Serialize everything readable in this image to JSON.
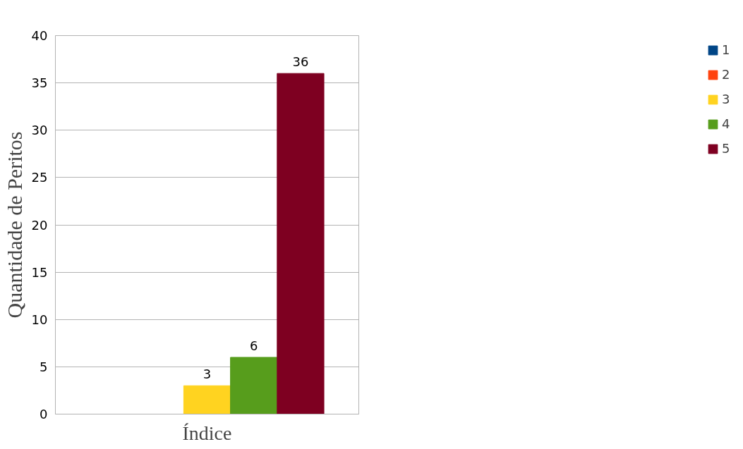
{
  "chart_data": {
    "type": "bar",
    "xlabel": "Índice",
    "ylabel": "Quantidade de Peritos",
    "categories": [
      null
    ],
    "series": [
      {
        "name": "1",
        "color": "#004586",
        "values": [
          0
        ],
        "value_labels": [
          null
        ]
      },
      {
        "name": "2",
        "color": "#ff420e",
        "values": [
          0
        ],
        "value_labels": [
          null
        ]
      },
      {
        "name": "3",
        "color": "#ffd320",
        "values": [
          3
        ],
        "value_labels": [
          "3"
        ]
      },
      {
        "name": "4",
        "color": "#579d1c",
        "values": [
          6
        ],
        "value_labels": [
          "6"
        ]
      },
      {
        "name": "5",
        "color": "#7e0021",
        "values": [
          36
        ],
        "value_labels": [
          "36"
        ]
      }
    ],
    "ylim": [
      0,
      40
    ],
    "yticks": [
      0,
      5,
      10,
      15,
      20,
      25,
      30,
      35,
      40
    ],
    "grid": "y",
    "legend": "right",
    "tick_labels": "y"
  }
}
